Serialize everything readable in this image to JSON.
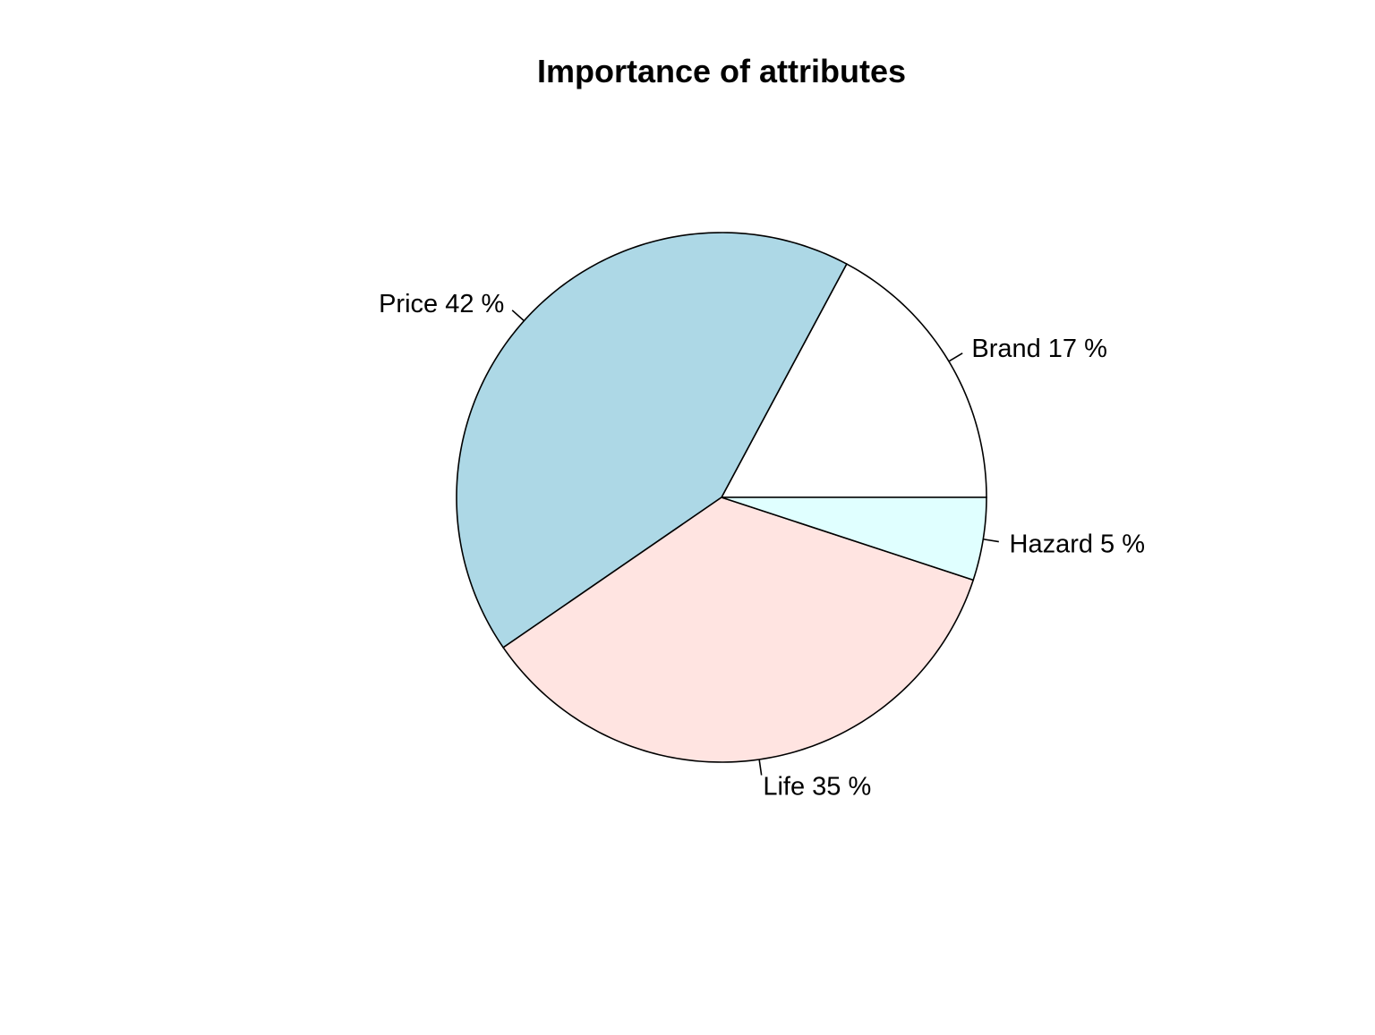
{
  "chart_data": {
    "type": "pie",
    "title": "Importance of attributes",
    "start_angle_deg": 0,
    "direction": "counterclockwise",
    "slices": [
      {
        "name": "Brand",
        "label": "Brand 17 %",
        "value": 17,
        "color": "#ffffff"
      },
      {
        "name": "Price",
        "label": "Price 42 %",
        "value": 42,
        "color": "#add8e6"
      },
      {
        "name": "Life",
        "label": "Life 35 %",
        "value": 35,
        "color": "#ffe4e1"
      },
      {
        "name": "Hazard",
        "label": "Hazard 5 %",
        "value": 5,
        "color": "#e0ffff"
      }
    ],
    "border_color": "#000000"
  }
}
